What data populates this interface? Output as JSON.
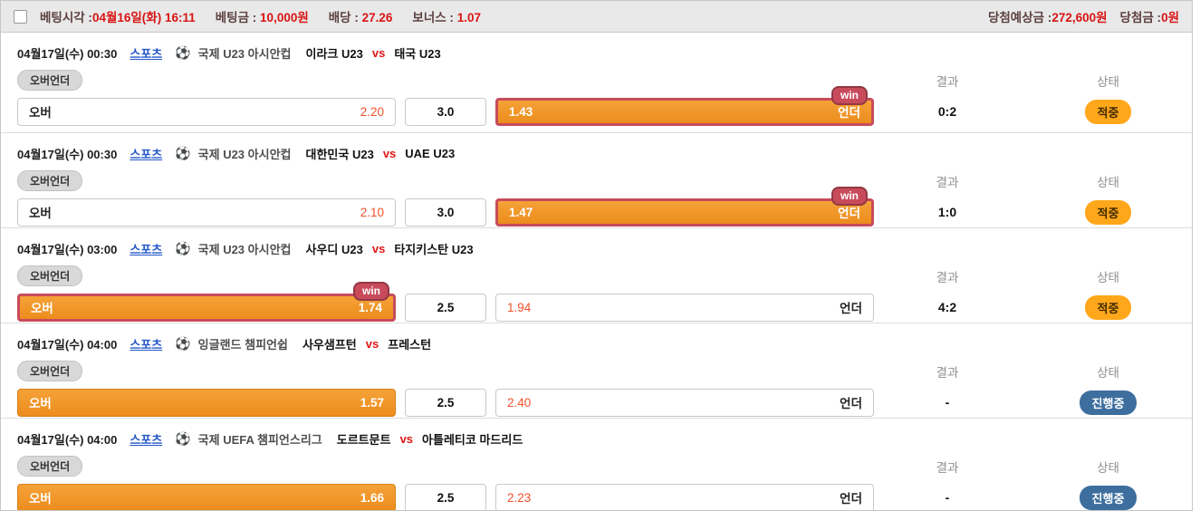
{
  "header": {
    "bet_time_label": "베팅시각 :",
    "bet_time_value": "04월16일(화) 16:11",
    "bet_amount_label": "베팅금 :",
    "bet_amount_value": "10,000원",
    "odds_label": "배당 :",
    "odds_value": "27.26",
    "bonus_label": "보너스 :",
    "bonus_value": "1.07",
    "expected_prize_label": "당첨예상금 :",
    "expected_prize_value": "272,600원",
    "prize_label": "당첨금 :",
    "prize_value": "0원"
  },
  "labels": {
    "sports_link": "스포츠",
    "soccer_icon": "⚽",
    "vs": "vs",
    "market_tag": "오버언더",
    "result_header": "결과",
    "status_header": "상태",
    "win_badge": "win"
  },
  "matches": [
    {
      "datetime": "04월17일(수) 00:30",
      "league": "국제 U23 아시안컵",
      "home": "이라크 U23",
      "away": "태국 U23",
      "over_label": "오버",
      "over_odds": "2.20",
      "line": "3.0",
      "under_odds": "1.43",
      "under_label": "언더",
      "selected": "under",
      "win": true,
      "result": "0:2",
      "status": "적중",
      "status_type": "hit"
    },
    {
      "datetime": "04월17일(수) 00:30",
      "league": "국제 U23 아시안컵",
      "home": "대한민국 U23",
      "away": "UAE U23",
      "over_label": "오버",
      "over_odds": "2.10",
      "line": "3.0",
      "under_odds": "1.47",
      "under_label": "언더",
      "selected": "under",
      "win": true,
      "result": "1:0",
      "status": "적중",
      "status_type": "hit"
    },
    {
      "datetime": "04월17일(수) 03:00",
      "league": "국제 U23 아시안컵",
      "home": "사우디 U23",
      "away": "타지키스탄 U23",
      "over_label": "오버",
      "over_odds": "1.74",
      "line": "2.5",
      "under_odds": "1.94",
      "under_label": "언더",
      "selected": "over",
      "win": true,
      "result": "4:2",
      "status": "적중",
      "status_type": "hit"
    },
    {
      "datetime": "04월17일(수) 04:00",
      "league": "잉글랜드 챔피언쉽",
      "home": "사우샘프턴",
      "away": "프레스턴",
      "over_label": "오버",
      "over_odds": "1.57",
      "line": "2.5",
      "under_odds": "2.40",
      "under_label": "언더",
      "selected": "over",
      "win": false,
      "result": "-",
      "status": "진행중",
      "status_type": "live"
    },
    {
      "datetime": "04월17일(수) 04:00",
      "league": "국제 UEFA 챔피언스리그",
      "home": "도르트문트",
      "away": "아틀레티코 마드리드",
      "over_label": "오버",
      "over_odds": "1.66",
      "line": "2.5",
      "under_odds": "2.23",
      "under_label": "언더",
      "selected": "over",
      "win": false,
      "result": "-",
      "status": "진행중",
      "status_type": "live"
    }
  ],
  "colors": {
    "selected_orange": "#ee9226",
    "win_frame": "#c84b5c",
    "odds_red": "#f2512b",
    "hit_badge": "#ffa71b",
    "live_badge": "#3d6e9d",
    "link_blue": "#2356c7",
    "value_red": "#d91414"
  }
}
